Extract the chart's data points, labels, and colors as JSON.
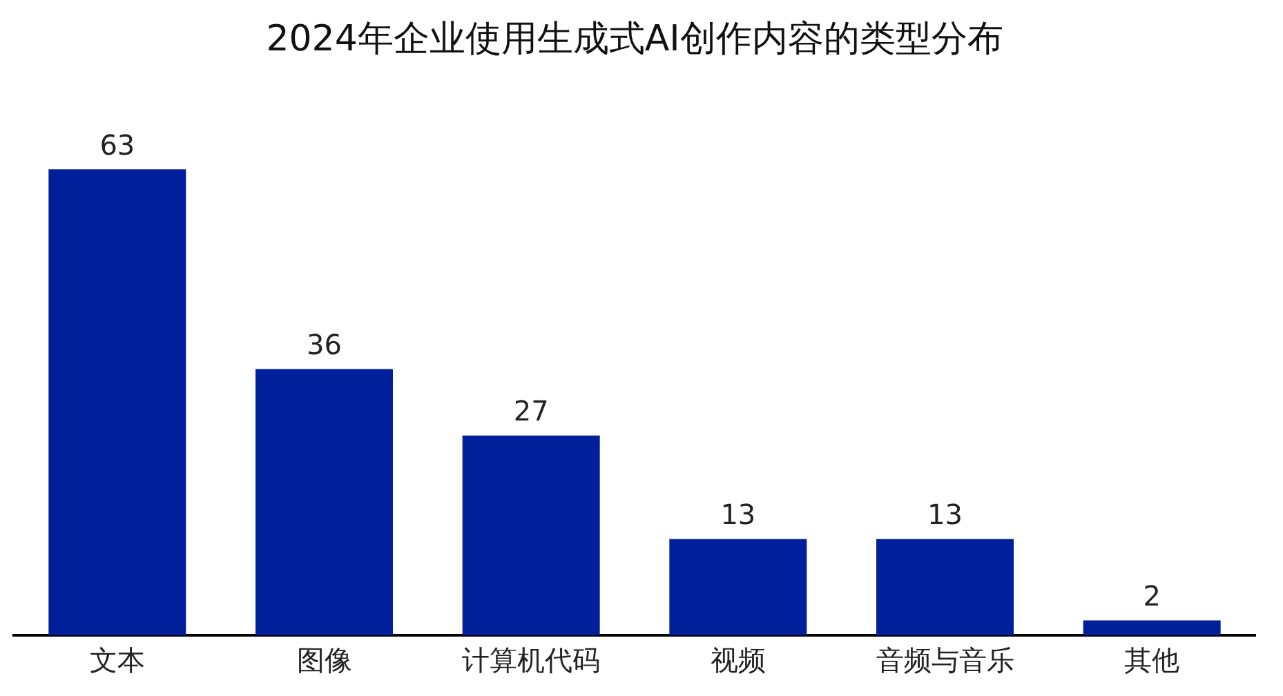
{
  "chart_data": {
    "type": "bar",
    "title": "2024年企业使用生成式AI创作内容的类型分布",
    "categories": [
      "文本",
      "图像",
      "计算机代码",
      "视频",
      "音频与音乐",
      "其他"
    ],
    "values": [
      63,
      36,
      27,
      13,
      13,
      2
    ],
    "color": "#001f9a",
    "data_labels": true,
    "grid": false,
    "legend": false
  }
}
